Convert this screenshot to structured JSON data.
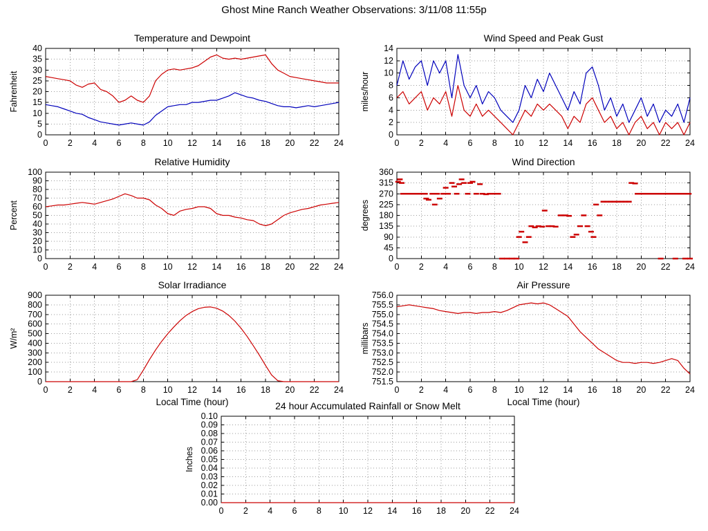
{
  "page_title": "Ghost Mine Ranch Weather Observations: 3/11/08 11:55p",
  "colors": {
    "red": "#cc0000",
    "blue": "#0000bb",
    "grid": "#9a9a9a",
    "axis": "#000000",
    "text": "#000000",
    "background": "#ffffff"
  },
  "chart_data": [
    {
      "id": "temperature",
      "type": "line",
      "title": "Temperature and Dewpoint",
      "ylabel": "Fahrenheit",
      "xlabel": "",
      "xlim": [
        0,
        24
      ],
      "ylim": [
        0,
        40
      ],
      "xtick_labels": [
        "0",
        "2",
        "4",
        "6",
        "8",
        "10",
        "12",
        "14",
        "16",
        "18",
        "20",
        "22",
        "24"
      ],
      "ytick_labels": [
        "0",
        "5",
        "10",
        "15",
        "20",
        "25",
        "30",
        "35",
        "40"
      ],
      "grid": true,
      "x_start": 0,
      "x_step": 0.5,
      "series": [
        {
          "name": "Temperature",
          "color": "red",
          "values": [
            27,
            26.5,
            26,
            25.5,
            25,
            23,
            22,
            23.5,
            24,
            21,
            20,
            18,
            15,
            16,
            18,
            16,
            15,
            18,
            25,
            28,
            30,
            30.5,
            30,
            30.5,
            31,
            32,
            34,
            36,
            37,
            35.5,
            35,
            35.5,
            35,
            35.5,
            36,
            36.5,
            37,
            33,
            30,
            28.5,
            27,
            26.5,
            26,
            25.5,
            25,
            24.5,
            24,
            24,
            24
          ]
        },
        {
          "name": "Dewpoint",
          "color": "blue",
          "values": [
            14,
            13.5,
            13,
            12,
            11,
            10,
            9.5,
            8,
            7,
            6,
            5.5,
            5,
            4.5,
            5,
            5.5,
            5,
            4.5,
            6,
            9,
            11,
            13,
            13.5,
            14,
            14,
            15,
            15,
            15.5,
            16,
            16,
            17,
            18,
            19.5,
            18.5,
            17.5,
            17,
            16,
            15.5,
            14.5,
            13.5,
            13,
            13,
            12.5,
            13,
            13.5,
            13,
            13.5,
            14,
            14.5,
            15
          ]
        }
      ]
    },
    {
      "id": "wind_speed",
      "type": "line",
      "title": "Wind Speed and Peak Gust",
      "ylabel": "miles/hour",
      "xlabel": "",
      "xlim": [
        0,
        24
      ],
      "ylim": [
        0,
        14
      ],
      "xtick_labels": [
        "0",
        "2",
        "4",
        "6",
        "8",
        "10",
        "12",
        "14",
        "16",
        "18",
        "20",
        "22",
        "24"
      ],
      "ytick_labels": [
        "0",
        "2",
        "4",
        "6",
        "8",
        "10",
        "12",
        "14"
      ],
      "grid": true,
      "x_start": 0,
      "x_step": 0.5,
      "series": [
        {
          "name": "Peak Gust",
          "color": "blue",
          "values": [
            8,
            12,
            9,
            11,
            12,
            8,
            12,
            10,
            12,
            6,
            13,
            8,
            6,
            8,
            5,
            7,
            6,
            4,
            3,
            2,
            4,
            8,
            6,
            9,
            7,
            10,
            8,
            6,
            4,
            7,
            5,
            10,
            11,
            8,
            4,
            6,
            3,
            5,
            2,
            4,
            6,
            3,
            5,
            2,
            4,
            3,
            5,
            2,
            6
          ]
        },
        {
          "name": "Wind Speed",
          "color": "red",
          "values": [
            6,
            7,
            5,
            6,
            7,
            4,
            6,
            5,
            7,
            3,
            8,
            4,
            3,
            5,
            3,
            4,
            3,
            2,
            1,
            0,
            2,
            4,
            3,
            5,
            4,
            5,
            4,
            3,
            1,
            3,
            2,
            5,
            6,
            4,
            2,
            3,
            1,
            2,
            0,
            2,
            3,
            1,
            2,
            0,
            2,
            1,
            2,
            0,
            2
          ]
        }
      ]
    },
    {
      "id": "humidity",
      "type": "line",
      "title": "Relative Humidity",
      "ylabel": "Percent",
      "xlabel": "",
      "xlim": [
        0,
        24
      ],
      "ylim": [
        0,
        100
      ],
      "xtick_labels": [
        "0",
        "2",
        "4",
        "6",
        "8",
        "10",
        "12",
        "14",
        "16",
        "18",
        "20",
        "22",
        "24"
      ],
      "ytick_labels": [
        "0",
        "10",
        "20",
        "30",
        "40",
        "50",
        "60",
        "70",
        "80",
        "90",
        "100"
      ],
      "grid": true,
      "x_start": 0,
      "x_step": 0.5,
      "series": [
        {
          "name": "Relative Humidity",
          "color": "red",
          "values": [
            60,
            61,
            62,
            62,
            63,
            64,
            65,
            64,
            63,
            65,
            67,
            69,
            72,
            75,
            73,
            70,
            70,
            68,
            62,
            58,
            52,
            50,
            55,
            57,
            58,
            60,
            60,
            58,
            52,
            50,
            50,
            48,
            47,
            45,
            44,
            40,
            38,
            40,
            45,
            50,
            53,
            55,
            57,
            58,
            60,
            62,
            63,
            64,
            65
          ]
        }
      ]
    },
    {
      "id": "wind_direction",
      "type": "scatter",
      "title": "Wind Direction",
      "ylabel": "degrees",
      "xlabel": "",
      "xlim": [
        0,
        24
      ],
      "ylim": [
        0,
        360
      ],
      "xtick_labels": [
        "0",
        "2",
        "4",
        "6",
        "8",
        "10",
        "12",
        "14",
        "16",
        "18",
        "20",
        "22",
        "24"
      ],
      "ytick_labels": [
        "0",
        "45",
        "90",
        "135",
        "180",
        "225",
        "270",
        "315",
        "360"
      ],
      "grid": true,
      "marker": "hdash",
      "series_name": "Wind Direction",
      "color": "red",
      "points": [
        [
          0.1,
          320
        ],
        [
          0.25,
          330
        ],
        [
          0.4,
          315
        ],
        [
          0.5,
          270
        ],
        [
          0.7,
          270
        ],
        [
          0.9,
          270
        ],
        [
          1.1,
          270
        ],
        [
          1.3,
          270
        ],
        [
          1.5,
          270
        ],
        [
          1.7,
          270
        ],
        [
          1.9,
          270
        ],
        [
          2.1,
          270
        ],
        [
          2.3,
          270
        ],
        [
          2.4,
          250
        ],
        [
          2.6,
          245
        ],
        [
          2.9,
          270
        ],
        [
          3.1,
          225
        ],
        [
          3.3,
          270
        ],
        [
          3.5,
          250
        ],
        [
          3.8,
          270
        ],
        [
          4.0,
          295
        ],
        [
          4.2,
          270
        ],
        [
          4.5,
          315
        ],
        [
          4.7,
          300
        ],
        [
          4.9,
          270
        ],
        [
          5.1,
          310
        ],
        [
          5.3,
          330
        ],
        [
          5.5,
          315
        ],
        [
          5.8,
          270
        ],
        [
          6.0,
          315
        ],
        [
          6.2,
          320
        ],
        [
          6.5,
          270
        ],
        [
          6.8,
          310
        ],
        [
          7.0,
          270
        ],
        [
          7.3,
          268
        ],
        [
          7.6,
          270
        ],
        [
          8.0,
          270
        ],
        [
          8.3,
          270
        ],
        [
          8.6,
          0
        ],
        [
          9.0,
          0
        ],
        [
          9.4,
          0
        ],
        [
          9.8,
          0
        ],
        [
          10.0,
          90
        ],
        [
          10.2,
          112
        ],
        [
          10.5,
          68
        ],
        [
          10.8,
          90
        ],
        [
          11.0,
          135
        ],
        [
          11.3,
          130
        ],
        [
          11.6,
          135
        ],
        [
          11.9,
          133
        ],
        [
          12.1,
          200
        ],
        [
          12.4,
          135
        ],
        [
          12.7,
          135
        ],
        [
          13.0,
          133
        ],
        [
          13.4,
          180
        ],
        [
          13.8,
          180
        ],
        [
          14.1,
          178
        ],
        [
          14.4,
          90
        ],
        [
          14.7,
          100
        ],
        [
          15.0,
          135
        ],
        [
          15.3,
          180
        ],
        [
          15.6,
          135
        ],
        [
          15.9,
          112
        ],
        [
          16.1,
          90
        ],
        [
          16.3,
          225
        ],
        [
          16.6,
          180
        ],
        [
          16.9,
          237
        ],
        [
          17.2,
          237
        ],
        [
          17.5,
          237
        ],
        [
          17.8,
          237
        ],
        [
          18.1,
          237
        ],
        [
          18.4,
          237
        ],
        [
          18.7,
          237
        ],
        [
          19.0,
          237
        ],
        [
          19.2,
          315
        ],
        [
          19.5,
          313
        ],
        [
          19.7,
          270
        ],
        [
          19.9,
          270
        ],
        [
          20.1,
          270
        ],
        [
          20.3,
          270
        ],
        [
          20.5,
          270
        ],
        [
          20.7,
          270
        ],
        [
          20.9,
          270
        ],
        [
          21.1,
          270
        ],
        [
          21.3,
          270
        ],
        [
          21.5,
          270
        ],
        [
          21.7,
          270
        ],
        [
          21.9,
          270
        ],
        [
          22.1,
          270
        ],
        [
          22.3,
          270
        ],
        [
          22.5,
          270
        ],
        [
          22.7,
          270
        ],
        [
          22.9,
          270
        ],
        [
          23.1,
          270
        ],
        [
          23.3,
          270
        ],
        [
          23.5,
          270
        ],
        [
          23.7,
          270
        ],
        [
          23.9,
          270
        ],
        [
          21.6,
          0
        ],
        [
          22.8,
          0
        ],
        [
          23.6,
          0
        ],
        [
          24,
          0
        ]
      ]
    },
    {
      "id": "solar",
      "type": "line",
      "title": "Solar Irradiance",
      "ylabel": "W/m²",
      "xlabel": "Local Time (hour)",
      "xlim": [
        0,
        24
      ],
      "ylim": [
        0,
        900
      ],
      "xtick_labels": [
        "0",
        "2",
        "4",
        "6",
        "8",
        "10",
        "12",
        "14",
        "16",
        "18",
        "20",
        "22",
        "24"
      ],
      "ytick_labels": [
        "0",
        "100",
        "200",
        "300",
        "400",
        "500",
        "600",
        "700",
        "800",
        "900"
      ],
      "grid": true,
      "x_start": 0,
      "x_step": 0.5,
      "series": [
        {
          "name": "Solar Irradiance",
          "color": "red",
          "values": [
            0,
            0,
            0,
            0,
            0,
            0,
            0,
            0,
            0,
            0,
            0,
            0,
            0,
            0,
            0,
            20,
            120,
            230,
            330,
            420,
            500,
            570,
            635,
            690,
            730,
            760,
            775,
            778,
            765,
            735,
            690,
            630,
            555,
            470,
            375,
            275,
            170,
            70,
            10,
            0,
            0,
            0,
            0,
            0,
            0,
            0,
            0,
            0,
            0
          ]
        }
      ]
    },
    {
      "id": "pressure",
      "type": "line",
      "title": "Air Pressure",
      "ylabel": "millibars",
      "xlabel": "Local Time (hour)",
      "xlim": [
        0,
        24
      ],
      "ylim": [
        751.5,
        756.0
      ],
      "xtick_labels": [
        "0",
        "2",
        "4",
        "6",
        "8",
        "10",
        "12",
        "14",
        "16",
        "18",
        "20",
        "22",
        "24"
      ],
      "ytick_labels": [
        "751.5",
        "752.0",
        "752.5",
        "753.0",
        "753.5",
        "754.0",
        "754.5",
        "755.0",
        "755.5",
        "756.0"
      ],
      "grid": true,
      "x_start": 0,
      "x_step": 0.5,
      "series": [
        {
          "name": "Air Pressure",
          "color": "red",
          "values": [
            755.4,
            755.45,
            755.5,
            755.45,
            755.4,
            755.35,
            755.3,
            755.2,
            755.15,
            755.1,
            755.05,
            755.1,
            755.1,
            755.05,
            755.1,
            755.1,
            755.15,
            755.1,
            755.2,
            755.35,
            755.5,
            755.55,
            755.6,
            755.55,
            755.6,
            755.5,
            755.3,
            755.1,
            754.9,
            754.5,
            754.1,
            753.8,
            753.5,
            753.2,
            753.0,
            752.8,
            752.6,
            752.5,
            752.5,
            752.45,
            752.5,
            752.5,
            752.45,
            752.5,
            752.6,
            752.7,
            752.6,
            752.2,
            751.9
          ]
        }
      ]
    },
    {
      "id": "rain",
      "type": "line",
      "title": "24 hour Accumulated Rainfall or Snow Melt",
      "ylabel": "Inches",
      "xlabel": "",
      "xlim": [
        0,
        24
      ],
      "ylim": [
        0,
        0.1
      ],
      "xtick_labels": [
        "0",
        "2",
        "4",
        "6",
        "8",
        "10",
        "12",
        "14",
        "16",
        "18",
        "20",
        "22",
        "24"
      ],
      "ytick_labels": [
        "0.00",
        "0.01",
        "0.02",
        "0.03",
        "0.04",
        "0.05",
        "0.06",
        "0.07",
        "0.08",
        "0.09",
        "0.10"
      ],
      "grid": true,
      "x_start": 0,
      "x_step": 24,
      "series": [
        {
          "name": "Accumulated Rainfall",
          "color": "red",
          "values": [
            0,
            0
          ]
        }
      ]
    }
  ]
}
